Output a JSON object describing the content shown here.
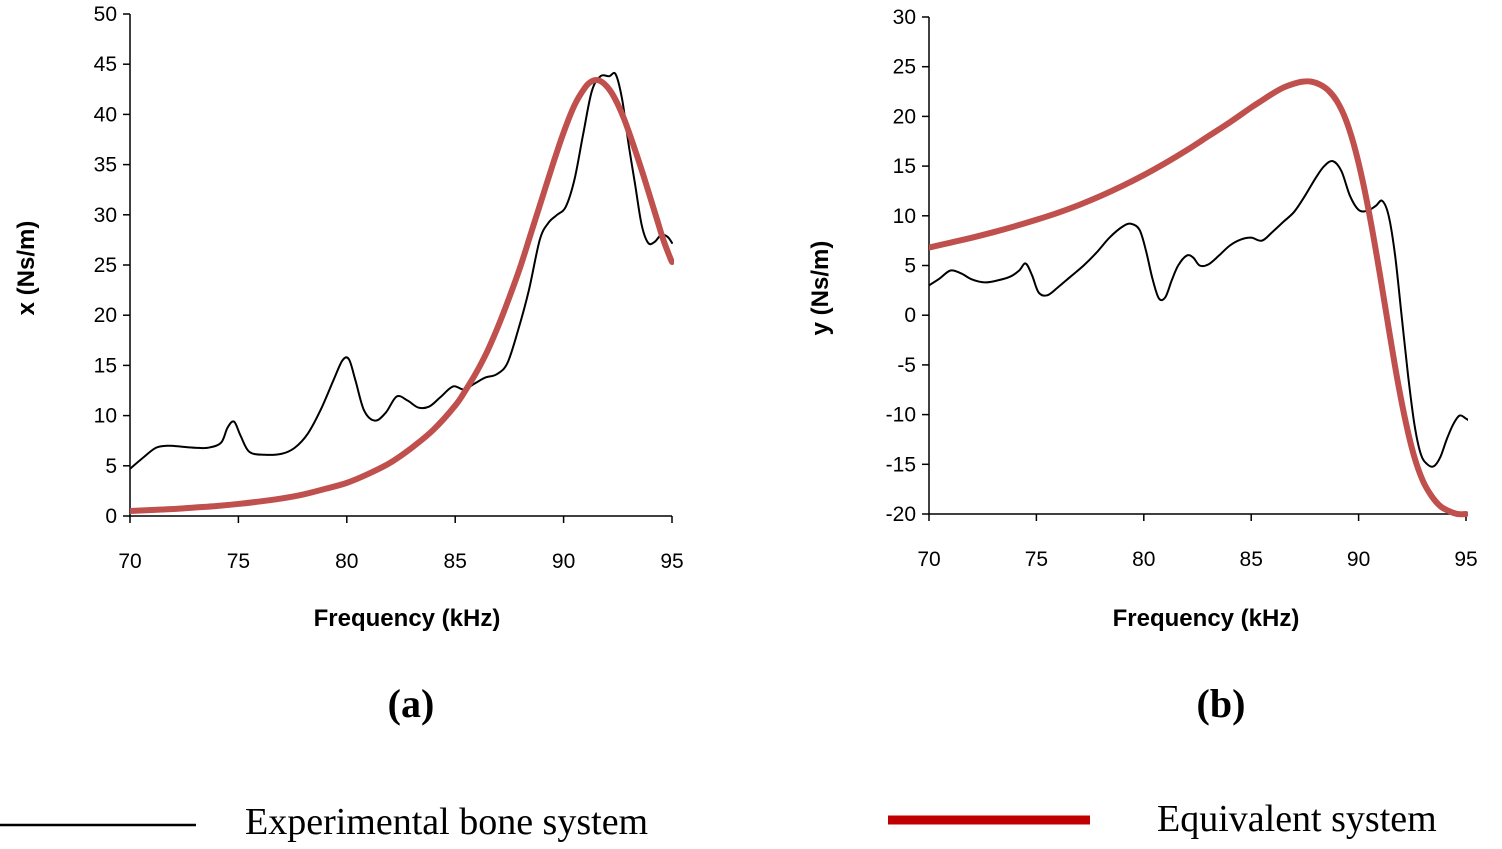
{
  "chart_data": [
    {
      "type": "line",
      "panel_label": "(a)",
      "xlabel": "Frequency (kHz)",
      "ylabel": "x (Ns/m)",
      "xlim": [
        70,
        95
      ],
      "ylim": [
        0,
        50
      ],
      "xticks": [
        70,
        75,
        80,
        85,
        90,
        95
      ],
      "yticks": [
        0,
        5,
        10,
        15,
        20,
        25,
        30,
        35,
        40,
        45,
        50
      ],
      "grid": false,
      "series": [
        {
          "name": "Experimental bone system",
          "color": "#000000",
          "x": [
            70,
            70.6,
            71.2,
            71.8,
            72.4,
            73,
            73.6,
            74.2,
            74.5,
            74.8,
            75.1,
            75.5,
            76.2,
            77,
            77.6,
            78.2,
            78.8,
            79.4,
            79.8,
            80.1,
            80.4,
            80.8,
            81.3,
            81.8,
            82.3,
            82.8,
            83.3,
            83.8,
            84.3,
            84.9,
            85.4,
            85.9,
            86.4,
            86.9,
            87.4,
            87.9,
            88.4,
            88.9,
            89.3,
            89.7,
            90.1,
            90.5,
            90.9,
            91.3,
            91.7,
            92.1,
            92.4,
            92.7,
            93,
            93.3,
            93.6,
            93.9,
            94.2,
            94.5,
            94.8,
            95
          ],
          "y": [
            4.7,
            5.8,
            6.8,
            7,
            6.9,
            6.8,
            6.8,
            7.3,
            8.8,
            9.4,
            8,
            6.4,
            6.1,
            6.2,
            6.8,
            8.2,
            10.6,
            13.6,
            15.5,
            15.6,
            13.5,
            10.5,
            9.5,
            10.3,
            11.9,
            11.5,
            10.8,
            10.9,
            11.8,
            12.9,
            12.6,
            13.2,
            13.8,
            14.1,
            15.2,
            18.5,
            22.5,
            27.5,
            29.2,
            30,
            30.8,
            33.5,
            38,
            42.3,
            43.8,
            43.8,
            44,
            41.5,
            37,
            33,
            29,
            27.2,
            27.3,
            28,
            27.8,
            27.2
          ]
        },
        {
          "name": "Equivalent system",
          "color": "#c0504d",
          "x": [
            70,
            71,
            72,
            73,
            74,
            75,
            76,
            77,
            78,
            79,
            80,
            81,
            82,
            83,
            84,
            85,
            85.5,
            86,
            86.5,
            87,
            87.5,
            88,
            88.5,
            89,
            89.5,
            90,
            90.5,
            91,
            91.3,
            91.6,
            91.9,
            92.2,
            92.5,
            92.8,
            93.1,
            93.4,
            93.7,
            94,
            94.3,
            94.6,
            94.9,
            95
          ],
          "y": [
            0.5,
            0.6,
            0.7,
            0.85,
            1,
            1.2,
            1.45,
            1.75,
            2.15,
            2.7,
            3.3,
            4.2,
            5.3,
            6.8,
            8.6,
            11,
            12.6,
            14.4,
            16.5,
            19,
            21.8,
            24.8,
            28.2,
            31.6,
            35,
            38.2,
            40.9,
            42.7,
            43.3,
            43.4,
            43,
            42.2,
            41,
            39.5,
            37.7,
            35.8,
            33.8,
            31.7,
            29.6,
            27.5,
            25.8,
            25.3
          ]
        }
      ]
    },
    {
      "type": "line",
      "panel_label": "(b)",
      "xlabel": "Frequency (kHz)",
      "ylabel": "y (Ns/m)",
      "xlim": [
        70,
        95
      ],
      "ylim": [
        -20,
        30
      ],
      "xticks": [
        70,
        75,
        80,
        85,
        90,
        95
      ],
      "yticks": [
        -20,
        -15,
        -10,
        -5,
        0,
        5,
        10,
        15,
        20,
        25,
        30
      ],
      "grid": false,
      "series": [
        {
          "name": "Experimental bone system",
          "color": "#000000",
          "x": [
            70,
            70.5,
            71,
            71.5,
            72,
            72.6,
            73.2,
            73.8,
            74.2,
            74.5,
            74.8,
            75.1,
            75.5,
            76,
            76.6,
            77.2,
            77.8,
            78.4,
            79,
            79.4,
            79.8,
            80.1,
            80.4,
            80.7,
            81,
            81.3,
            81.6,
            82,
            82.3,
            82.6,
            83,
            83.5,
            84,
            84.5,
            85,
            85.5,
            86,
            86.5,
            87,
            87.5,
            88,
            88.4,
            88.8,
            89.2,
            89.6,
            90,
            90.4,
            90.8,
            91.1,
            91.4,
            91.7,
            92,
            92.3,
            92.6,
            92.9,
            93.2,
            93.5,
            93.8,
            94.1,
            94.4,
            94.7,
            95,
            95.2
          ],
          "y": [
            3,
            3.7,
            4.5,
            4.2,
            3.6,
            3.3,
            3.5,
            3.9,
            4.5,
            5.2,
            4,
            2.3,
            2,
            2.8,
            3.9,
            5,
            6.3,
            7.8,
            8.9,
            9.2,
            8.6,
            6.5,
            3.7,
            1.7,
            1.8,
            3.5,
            5,
            6,
            5.8,
            5,
            5.1,
            6,
            7,
            7.6,
            7.8,
            7.5,
            8.4,
            9.4,
            10.4,
            12,
            13.8,
            15,
            15.5,
            14.5,
            12,
            10.6,
            10.5,
            11,
            11.5,
            10,
            6,
            0,
            -6,
            -11,
            -14,
            -15,
            -15.2,
            -14.3,
            -12.5,
            -11,
            -10.1,
            -10.4,
            -10.7
          ]
        },
        {
          "name": "Equivalent system",
          "color": "#c0504d",
          "x": [
            70,
            71,
            72,
            73,
            74,
            75,
            76,
            77,
            78,
            79,
            80,
            81,
            82,
            83,
            84,
            85,
            85.5,
            86,
            86.5,
            87,
            87.4,
            87.8,
            88.2,
            88.6,
            89,
            89.4,
            89.8,
            90.2,
            90.6,
            91,
            91.4,
            91.8,
            92.2,
            92.6,
            93,
            93.4,
            93.8,
            94.2,
            94.6,
            95
          ],
          "y": [
            6.8,
            7.3,
            7.8,
            8.35,
            8.95,
            9.6,
            10.3,
            11.1,
            12,
            13,
            14.1,
            15.3,
            16.6,
            18,
            19.4,
            20.9,
            21.6,
            22.3,
            22.9,
            23.3,
            23.5,
            23.5,
            23.2,
            22.6,
            21.5,
            19.7,
            17,
            13.4,
            9,
            4,
            -1.3,
            -6.4,
            -10.8,
            -14.3,
            -16.7,
            -18.2,
            -19.2,
            -19.7,
            -20,
            -20
          ]
        }
      ]
    }
  ],
  "legend": {
    "items": [
      {
        "label": "Experimental bone system",
        "color": "#000000"
      },
      {
        "label": "Equivalent system",
        "color": "#c0504d"
      }
    ]
  }
}
